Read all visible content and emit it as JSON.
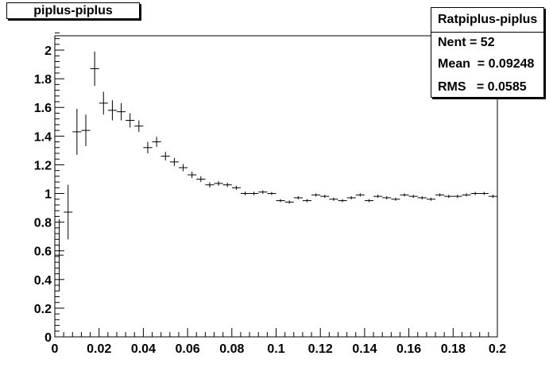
{
  "title": "piplus-piplus",
  "stats": {
    "name": "Ratpiplus-piplus",
    "entries": "Nent = 52",
    "mean": "Mean  = 0.09248",
    "rms": "RMS   = 0.0585"
  },
  "chart_data": {
    "type": "scatter",
    "title": "piplus-piplus",
    "xlabel": "",
    "ylabel": "",
    "xlim": [
      0,
      0.2
    ],
    "ylim": [
      0,
      2.1
    ],
    "xticks": [
      0,
      0.02,
      0.04,
      0.06,
      0.08,
      0.1,
      0.12,
      0.14,
      0.16,
      0.18,
      0.2
    ],
    "xtick_labels": [
      "0",
      "0.02",
      "0.04",
      "0.06",
      "0.08",
      "0.1",
      "0.12",
      "0.14",
      "0.16",
      "0.18",
      "0.2"
    ],
    "yticks": [
      0,
      0.2,
      0.4,
      0.6,
      0.8,
      1,
      1.2,
      1.4,
      1.6,
      1.8,
      2
    ],
    "ytick_labels": [
      "0",
      "0.2",
      "0.4",
      "0.6",
      "0.8",
      "1",
      "1.2",
      "1.4",
      "1.6",
      "1.8",
      "2"
    ],
    "grid": false,
    "bin_half_width": 0.002,
    "series": [
      {
        "x": [
          0.002,
          0.006,
          0.01,
          0.014,
          0.018,
          0.022,
          0.026,
          0.03,
          0.034,
          0.038,
          0.042,
          0.046,
          0.05,
          0.054,
          0.058,
          0.062,
          0.066,
          0.07,
          0.074,
          0.078,
          0.082,
          0.086,
          0.09,
          0.094,
          0.098,
          0.102,
          0.106,
          0.11,
          0.114,
          0.118,
          0.122,
          0.126,
          0.13,
          0.134,
          0.138,
          0.142,
          0.146,
          0.15,
          0.154,
          0.158,
          0.162,
          0.166,
          0.17,
          0.174,
          0.178,
          0.182,
          0.186,
          0.19,
          0.194,
          0.198
        ],
        "y": [
          0.57,
          0.87,
          1.43,
          1.44,
          1.87,
          1.63,
          1.58,
          1.57,
          1.51,
          1.47,
          1.32,
          1.36,
          1.26,
          1.22,
          1.18,
          1.13,
          1.1,
          1.06,
          1.07,
          1.06,
          1.04,
          1.0,
          1.0,
          1.01,
          1.0,
          0.95,
          0.94,
          0.97,
          0.95,
          0.99,
          0.98,
          0.96,
          0.95,
          0.97,
          0.99,
          0.95,
          0.98,
          0.97,
          0.96,
          0.99,
          0.98,
          0.97,
          0.96,
          0.99,
          0.98,
          0.98,
          0.99,
          1.0,
          1.0,
          0.98
        ],
        "yerr": [
          0.25,
          0.19,
          0.16,
          0.11,
          0.12,
          0.08,
          0.07,
          0.06,
          0.05,
          0.04,
          0.04,
          0.035,
          0.03,
          0.028,
          0.025,
          0.022,
          0.02,
          0.018,
          0.016,
          0.015,
          0.014,
          0.013,
          0.012,
          0.012,
          0.011,
          0.011,
          0.011,
          0.011,
          0.011,
          0.011,
          0.011,
          0.011,
          0.011,
          0.011,
          0.011,
          0.011,
          0.011,
          0.011,
          0.011,
          0.011,
          0.011,
          0.011,
          0.011,
          0.011,
          0.011,
          0.011,
          0.011,
          0.011,
          0.011,
          0.011
        ]
      }
    ]
  }
}
